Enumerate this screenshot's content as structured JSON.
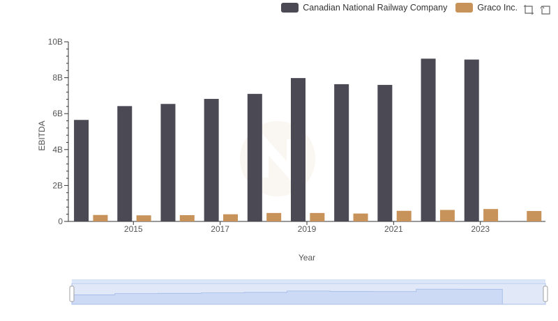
{
  "legend": [
    {
      "name": "Canadian National Railway Company",
      "color": "#4a4954"
    },
    {
      "name": "Graco Inc.",
      "color": "#c8935b"
    }
  ],
  "toolbox": {
    "icons": [
      "zoom-icon",
      "restore-icon"
    ]
  },
  "chart_data": {
    "type": "bar",
    "xlabel": "Year",
    "ylabel": "EBITDA",
    "ylim": [
      0,
      10000000000
    ],
    "y_ticks": [
      "0",
      "2B",
      "4B",
      "6B",
      "8B",
      "10B"
    ],
    "x_tick_labels": [
      "2015",
      "2017",
      "2019",
      "2021",
      "2023"
    ],
    "categories": [
      "2014",
      "2015",
      "2016",
      "2017",
      "2018",
      "2019",
      "2020",
      "2021",
      "2022",
      "2023",
      "2024"
    ],
    "series": [
      {
        "name": "Canadian National Railway Company",
        "color": "#4a4954",
        "values": [
          5650000000,
          6420000000,
          6540000000,
          6820000000,
          7100000000,
          7980000000,
          7640000000,
          7600000000,
          9060000000,
          9010000000,
          null
        ]
      },
      {
        "name": "Graco Inc.",
        "color": "#c8935b",
        "values": [
          360000000,
          340000000,
          350000000,
          400000000,
          470000000,
          470000000,
          440000000,
          590000000,
          640000000,
          690000000,
          580000000
        ]
      }
    ],
    "grid": false,
    "legend_position": "top-right",
    "data_zoom": true
  }
}
